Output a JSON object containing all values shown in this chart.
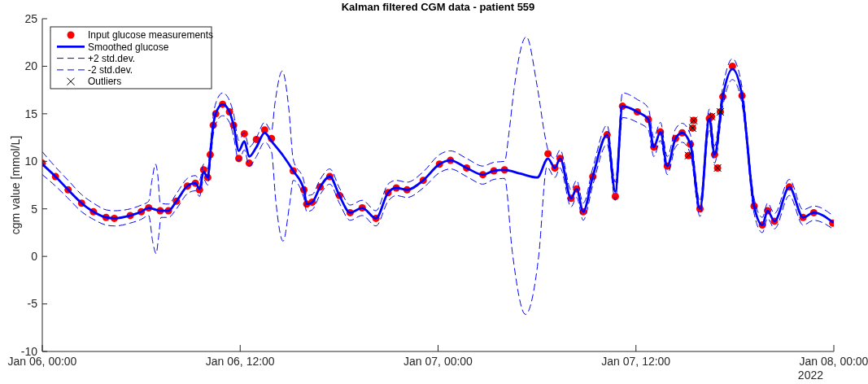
{
  "chart_data": {
    "type": "line",
    "title": "Kalman filtered CGM data - patient 559",
    "ylabel": "cgm value [mmol/L]",
    "xlim": [
      "2022-01-06T00:00",
      "2022-01-08T00:00"
    ],
    "xticks": [
      {
        "value": "2022-01-06T00:00",
        "label": "Jan 06, 00:00"
      },
      {
        "value": "2022-01-06T12:00",
        "label": "Jan 06, 12:00"
      },
      {
        "value": "2022-01-07T00:00",
        "label": "Jan 07, 00:00"
      },
      {
        "value": "2022-01-07T12:00",
        "label": "Jan 07, 12:00"
      },
      {
        "value": "2022-01-08T00:00",
        "label": "Jan 08, 00:00"
      }
    ],
    "ylim": [
      -10,
      25
    ],
    "yticks": [
      -10,
      -5,
      0,
      5,
      10,
      15,
      20,
      25
    ],
    "annotations": [
      "2022"
    ],
    "legend": "top left",
    "line_style": "dashed",
    "series": [
      {
        "name": "Input glucose measurements",
        "type": "scatter",
        "marker": "circle",
        "color": "#ff0000",
        "x": [
          "2022-01-06T00:00",
          "2022-01-06T00:48",
          "2022-01-06T01:34",
          "2022-01-06T02:23",
          "2022-01-06T03:06",
          "2022-01-06T03:52",
          "2022-01-06T04:22",
          "2022-01-06T05:20",
          "2022-01-06T06:00",
          "2022-01-06T06:27",
          "2022-01-06T07:09",
          "2022-01-06T07:39",
          "2022-01-06T08:08",
          "2022-01-06T08:48",
          "2022-01-06T09:17",
          "2022-01-06T09:32",
          "2022-01-06T09:47",
          "2022-01-06T10:02",
          "2022-01-06T10:11",
          "2022-01-06T10:22",
          "2022-01-06T10:31",
          "2022-01-06T10:56",
          "2022-01-06T11:21",
          "2022-01-06T11:36",
          "2022-01-06T11:55",
          "2022-01-06T12:15",
          "2022-01-06T12:33",
          "2022-01-06T12:59",
          "2022-01-06T13:29",
          "2022-01-06T13:54",
          "2022-01-06T15:13",
          "2022-01-06T15:52",
          "2022-01-06T16:02",
          "2022-01-06T16:22",
          "2022-01-06T16:51",
          "2022-01-06T17:26",
          "2022-01-06T18:01",
          "2022-01-06T18:40",
          "2022-01-06T19:24",
          "2022-01-06T20:14",
          "2022-01-06T20:58",
          "2022-01-06T21:28",
          "2022-01-06T22:07",
          "2022-01-06T23:06",
          "2022-01-07T00:05",
          "2022-01-07T00:45",
          "2022-01-07T01:44",
          "2022-01-07T02:43",
          "2022-01-07T03:23",
          "2022-01-07T04:02",
          "2022-01-07T06:40",
          "2022-01-07T07:05",
          "2022-01-07T07:24",
          "2022-01-07T08:04",
          "2022-01-07T08:24",
          "2022-01-07T08:48",
          "2022-01-07T09:23",
          "2022-01-07T10:15",
          "2022-01-07T10:45",
          "2022-01-07T11:11",
          "2022-01-07T12:05",
          "2022-01-07T12:45",
          "2022-01-07T13:05",
          "2022-01-07T13:29",
          "2022-01-07T13:54",
          "2022-01-07T14:24",
          "2022-01-07T14:48",
          "2022-01-07T15:11",
          "2022-01-07T15:18",
          "2022-01-07T15:26",
          "2022-01-07T15:30",
          "2022-01-07T15:53",
          "2022-01-07T16:27",
          "2022-01-07T16:35",
          "2022-01-07T16:46",
          "2022-01-07T16:57",
          "2022-01-07T17:07",
          "2022-01-07T17:16",
          "2022-01-07T17:51",
          "2022-01-07T18:26",
          "2022-01-07T19:10",
          "2022-01-07T19:40",
          "2022-01-07T19:59",
          "2022-01-07T20:24",
          "2022-01-07T21:18",
          "2022-01-07T22:08",
          "2022-01-07T22:47",
          "2022-01-07T23:56"
        ],
        "values": [
          9.8,
          8.4,
          7.0,
          5.6,
          4.7,
          4.1,
          4.0,
          4.3,
          4.7,
          5.1,
          4.8,
          4.8,
          5.8,
          7.4,
          7.7,
          7.0,
          9.1,
          8.3,
          10.7,
          13.8,
          15.0,
          16.0,
          15.2,
          13.8,
          10.3,
          12.9,
          9.8,
          12.3,
          13.3,
          12.4,
          9.0,
          7.0,
          5.5,
          5.7,
          7.3,
          8.4,
          6.4,
          4.6,
          5.1,
          4.0,
          6.7,
          7.2,
          7.0,
          8.0,
          9.7,
          10.1,
          9.3,
          8.6,
          9.0,
          9.1,
          10.8,
          9.3,
          10.3,
          6.1,
          7.1,
          4.7,
          8.4,
          12.8,
          6.3,
          15.8,
          15.2,
          14.4,
          11.5,
          13.1,
          9.5,
          12.4,
          13.0,
          10.6,
          11.8,
          13.5,
          14.3,
          5.0,
          14.5,
          14.7,
          10.7,
          9.3,
          15.2,
          16.8,
          20.0,
          16.9,
          5.3,
          3.3,
          4.8,
          3.7,
          7.3,
          4.1,
          4.6,
          3.5
        ]
      },
      {
        "name": "Smoothed glucose",
        "line_style": "solid",
        "color": "#0000ff",
        "x": [
          "2022-01-06T00:00",
          "2022-01-06T00:48",
          "2022-01-06T01:34",
          "2022-01-06T02:23",
          "2022-01-06T03:06",
          "2022-01-06T03:52",
          "2022-01-06T04:22",
          "2022-01-06T05:20",
          "2022-01-06T06:00",
          "2022-01-06T06:27",
          "2022-01-06T06:54",
          "2022-01-06T07:09",
          "2022-01-06T07:39",
          "2022-01-06T08:08",
          "2022-01-06T08:48",
          "2022-01-06T09:17",
          "2022-01-06T09:32",
          "2022-01-06T09:47",
          "2022-01-06T10:02",
          "2022-01-06T10:11",
          "2022-01-06T10:22",
          "2022-01-06T10:31",
          "2022-01-06T10:56",
          "2022-01-06T11:21",
          "2022-01-06T11:36",
          "2022-01-06T11:55",
          "2022-01-06T12:15",
          "2022-01-06T12:33",
          "2022-01-06T12:59",
          "2022-01-06T13:29",
          "2022-01-06T13:54",
          "2022-01-06T14:36",
          "2022-01-06T15:13",
          "2022-01-06T15:52",
          "2022-01-06T16:02",
          "2022-01-06T16:22",
          "2022-01-06T16:51",
          "2022-01-06T17:26",
          "2022-01-06T18:01",
          "2022-01-06T18:40",
          "2022-01-06T19:24",
          "2022-01-06T20:14",
          "2022-01-06T20:58",
          "2022-01-06T21:28",
          "2022-01-06T22:07",
          "2022-01-06T23:06",
          "2022-01-07T00:05",
          "2022-01-07T00:45",
          "2022-01-07T01:44",
          "2022-01-07T02:43",
          "2022-01-07T03:23",
          "2022-01-07T04:02",
          "2022-01-07T05:00",
          "2022-01-07T06:01",
          "2022-01-07T06:40",
          "2022-01-07T07:05",
          "2022-01-07T07:24",
          "2022-01-07T08:04",
          "2022-01-07T08:24",
          "2022-01-07T08:48",
          "2022-01-07T09:23",
          "2022-01-07T10:15",
          "2022-01-07T10:45",
          "2022-01-07T11:11",
          "2022-01-07T12:05",
          "2022-01-07T12:45",
          "2022-01-07T13:05",
          "2022-01-07T13:29",
          "2022-01-07T13:54",
          "2022-01-07T14:24",
          "2022-01-07T14:48",
          "2022-01-07T15:18",
          "2022-01-07T15:53",
          "2022-01-07T16:27",
          "2022-01-07T16:46",
          "2022-01-07T17:16",
          "2022-01-07T17:51",
          "2022-01-07T18:26",
          "2022-01-07T19:10",
          "2022-01-07T19:40",
          "2022-01-07T19:59",
          "2022-01-07T20:24",
          "2022-01-07T21:18",
          "2022-01-07T22:08",
          "2022-01-07T22:47",
          "2022-01-07T23:56"
        ],
        "values": [
          9.7,
          8.4,
          7.0,
          5.6,
          4.7,
          4.1,
          4.0,
          4.3,
          4.7,
          5.1,
          4.9,
          4.8,
          4.8,
          5.8,
          7.4,
          7.7,
          7.1,
          8.9,
          8.3,
          10.7,
          13.8,
          15.0,
          16.0,
          15.2,
          13.8,
          11.1,
          12.1,
          10.5,
          11.5,
          13.0,
          12.1,
          10.6,
          9.0,
          7.0,
          5.5,
          5.7,
          7.3,
          8.4,
          6.4,
          4.6,
          5.1,
          4.0,
          6.7,
          7.2,
          7.0,
          8.0,
          9.7,
          10.1,
          9.3,
          8.6,
          9.0,
          9.1,
          8.7,
          8.3,
          10.3,
          9.3,
          10.3,
          6.1,
          7.1,
          4.7,
          8.4,
          12.8,
          6.8,
          15.8,
          15.2,
          14.4,
          11.5,
          13.1,
          9.5,
          12.4,
          13.0,
          11.8,
          5.0,
          14.5,
          10.7,
          16.8,
          19.7,
          16.9,
          5.3,
          3.3,
          4.8,
          3.7,
          7.3,
          4.1,
          4.6,
          3.6
        ]
      },
      {
        "name": "+2 std.dev.",
        "color": "#0000ff",
        "x": [
          "2022-01-06T00:00",
          "2022-01-06T00:48",
          "2022-01-06T01:34",
          "2022-01-06T02:23",
          "2022-01-06T03:06",
          "2022-01-06T03:52",
          "2022-01-06T04:22",
          "2022-01-06T05:20",
          "2022-01-06T06:00",
          "2022-01-06T06:27",
          "2022-01-06T06:39",
          "2022-01-06T06:52",
          "2022-01-06T07:00",
          "2022-01-06T07:09",
          "2022-01-06T07:39",
          "2022-01-06T08:08",
          "2022-01-06T08:48",
          "2022-01-06T09:17",
          "2022-01-06T09:32",
          "2022-01-06T09:47",
          "2022-01-06T10:02",
          "2022-01-06T10:11",
          "2022-01-06T10:22",
          "2022-01-06T10:31",
          "2022-01-06T10:56",
          "2022-01-06T11:21",
          "2022-01-06T11:36",
          "2022-01-06T11:55",
          "2022-01-06T12:15",
          "2022-01-06T12:33",
          "2022-01-06T12:59",
          "2022-01-06T13:29",
          "2022-01-06T13:54",
          "2022-01-06T14:06",
          "2022-01-06T14:33",
          "2022-01-06T14:57",
          "2022-01-06T15:13",
          "2022-01-06T15:52",
          "2022-01-06T16:02",
          "2022-01-06T16:22",
          "2022-01-06T16:51",
          "2022-01-06T17:26",
          "2022-01-06T18:01",
          "2022-01-06T18:40",
          "2022-01-06T19:24",
          "2022-01-06T20:14",
          "2022-01-06T20:58",
          "2022-01-06T21:28",
          "2022-01-06T22:07",
          "2022-01-06T23:06",
          "2022-01-07T00:05",
          "2022-01-07T00:45",
          "2022-01-07T01:44",
          "2022-01-07T02:43",
          "2022-01-07T03:23",
          "2022-01-07T04:02",
          "2022-01-07T04:18",
          "2022-01-07T04:36",
          "2022-01-07T05:21",
          "2022-01-07T06:00",
          "2022-01-07T06:30",
          "2022-01-07T06:40",
          "2022-01-07T07:05",
          "2022-01-07T07:24",
          "2022-01-07T08:04",
          "2022-01-07T08:24",
          "2022-01-07T08:48",
          "2022-01-07T09:23",
          "2022-01-07T10:15",
          "2022-01-07T10:45",
          "2022-01-07T11:11",
          "2022-01-07T12:05",
          "2022-01-07T12:45",
          "2022-01-07T13:05",
          "2022-01-07T13:29",
          "2022-01-07T13:54",
          "2022-01-07T14:24",
          "2022-01-07T14:48",
          "2022-01-07T15:18",
          "2022-01-07T15:53",
          "2022-01-07T16:27",
          "2022-01-07T16:46",
          "2022-01-07T17:16",
          "2022-01-07T17:51",
          "2022-01-07T18:26",
          "2022-01-07T19:10",
          "2022-01-07T19:40",
          "2022-01-07T19:59",
          "2022-01-07T20:24",
          "2022-01-07T21:18",
          "2022-01-07T22:08",
          "2022-01-07T22:47",
          "2022-01-07T23:56"
        ],
        "values": [
          11.0,
          9.4,
          8.0,
          6.5,
          5.6,
          4.9,
          4.8,
          5.0,
          5.4,
          5.8,
          8.0,
          9.7,
          8.6,
          5.6,
          5.5,
          6.6,
          8.2,
          8.5,
          8.0,
          9.7,
          9.2,
          11.6,
          14.8,
          16.1,
          17.2,
          16.4,
          15.0,
          12.2,
          13.0,
          11.5,
          12.5,
          14.1,
          13.2,
          16.0,
          19.5,
          15.5,
          10.2,
          7.9,
          6.4,
          6.5,
          8.1,
          9.2,
          7.2,
          5.4,
          5.9,
          4.8,
          7.6,
          8.0,
          7.8,
          8.9,
          10.7,
          11.1,
          10.3,
          9.5,
          9.9,
          10.0,
          13.0,
          17.5,
          23.1,
          18.0,
          12.5,
          11.2,
          10.3,
          11.2,
          7.0,
          8.0,
          5.6,
          9.3,
          13.8,
          7.8,
          17.2,
          16.5,
          15.6,
          12.5,
          14.1,
          10.5,
          13.4,
          14.0,
          12.8,
          5.8,
          15.5,
          11.6,
          17.8,
          20.8,
          17.8,
          6.1,
          4.1,
          5.6,
          4.5,
          8.1,
          4.9,
          5.3,
          4.3
        ]
      },
      {
        "name": "-2 std.dev.",
        "color": "#0000ff",
        "x": [
          "2022-01-06T00:00",
          "2022-01-06T00:48",
          "2022-01-06T01:34",
          "2022-01-06T02:23",
          "2022-01-06T03:06",
          "2022-01-06T03:52",
          "2022-01-06T04:22",
          "2022-01-06T05:20",
          "2022-01-06T06:00",
          "2022-01-06T06:27",
          "2022-01-06T06:42",
          "2022-01-06T06:54",
          "2022-01-06T07:03",
          "2022-01-06T07:12",
          "2022-01-06T07:39",
          "2022-01-06T08:08",
          "2022-01-06T08:48",
          "2022-01-06T09:17",
          "2022-01-06T09:32",
          "2022-01-06T09:47",
          "2022-01-06T10:02",
          "2022-01-06T10:11",
          "2022-01-06T10:22",
          "2022-01-06T10:31",
          "2022-01-06T10:56",
          "2022-01-06T11:21",
          "2022-01-06T11:36",
          "2022-01-06T11:55",
          "2022-01-06T12:15",
          "2022-01-06T12:33",
          "2022-01-06T12:59",
          "2022-01-06T13:29",
          "2022-01-06T13:54",
          "2022-01-06T14:09",
          "2022-01-06T14:36",
          "2022-01-06T15:00",
          "2022-01-06T15:13",
          "2022-01-06T15:52",
          "2022-01-06T16:02",
          "2022-01-06T16:22",
          "2022-01-06T16:51",
          "2022-01-06T17:26",
          "2022-01-06T18:01",
          "2022-01-06T18:40",
          "2022-01-06T19:24",
          "2022-01-06T20:14",
          "2022-01-06T20:58",
          "2022-01-06T21:28",
          "2022-01-06T22:07",
          "2022-01-06T23:06",
          "2022-01-07T00:05",
          "2022-01-07T00:45",
          "2022-01-07T01:44",
          "2022-01-07T02:43",
          "2022-01-07T03:23",
          "2022-01-07T04:02",
          "2022-01-07T04:30",
          "2022-01-07T05:18",
          "2022-01-07T06:06",
          "2022-01-07T06:36",
          "2022-01-07T07:05",
          "2022-01-07T07:24",
          "2022-01-07T08:04",
          "2022-01-07T08:24",
          "2022-01-07T08:48",
          "2022-01-07T09:23",
          "2022-01-07T10:15",
          "2022-01-07T10:45",
          "2022-01-07T11:11",
          "2022-01-07T12:05",
          "2022-01-07T12:45",
          "2022-01-07T13:05",
          "2022-01-07T13:29",
          "2022-01-07T13:54",
          "2022-01-07T14:24",
          "2022-01-07T14:48",
          "2022-01-07T15:18",
          "2022-01-07T15:53",
          "2022-01-07T16:27",
          "2022-01-07T16:46",
          "2022-01-07T17:16",
          "2022-01-07T17:51",
          "2022-01-07T18:26",
          "2022-01-07T19:10",
          "2022-01-07T19:40",
          "2022-01-07T19:59",
          "2022-01-07T20:24",
          "2022-01-07T21:18",
          "2022-01-07T22:08",
          "2022-01-07T22:47",
          "2022-01-07T23:56"
        ],
        "values": [
          8.6,
          7.4,
          6.1,
          4.7,
          3.9,
          3.3,
          3.2,
          3.5,
          3.9,
          4.3,
          1.5,
          0.3,
          2.0,
          4.1,
          4.1,
          5.0,
          6.6,
          6.9,
          6.3,
          8.1,
          7.5,
          9.7,
          12.8,
          13.9,
          14.8,
          14.1,
          12.6,
          10.0,
          11.2,
          9.5,
          10.5,
          12.0,
          11.0,
          6.0,
          1.6,
          5.5,
          8.0,
          6.1,
          4.7,
          4.9,
          6.5,
          7.6,
          5.6,
          3.8,
          4.3,
          3.2,
          5.8,
          6.4,
          6.2,
          7.2,
          8.8,
          9.2,
          8.4,
          7.6,
          8.1,
          8.2,
          0.5,
          -6.1,
          0.0,
          9.4,
          8.3,
          9.3,
          5.2,
          6.2,
          3.8,
          7.5,
          11.8,
          5.9,
          14.6,
          14.1,
          13.3,
          10.5,
          12.2,
          8.6,
          11.5,
          12.0,
          10.8,
          4.2,
          13.4,
          9.8,
          15.8,
          18.6,
          16.0,
          4.5,
          2.5,
          4.0,
          2.9,
          6.4,
          3.3,
          3.8,
          2.9
        ]
      },
      {
        "name": "Outliers",
        "type": "scatter",
        "marker": "cross",
        "color": "#000000",
        "x": [
          "2022-01-07T15:11",
          "2022-01-07T15:26",
          "2022-01-07T15:30",
          "2022-01-07T16:35",
          "2022-01-07T16:57",
          "2022-01-07T17:07"
        ],
        "values": [
          10.6,
          13.5,
          14.3,
          14.7,
          9.3,
          15.2
        ]
      }
    ]
  }
}
